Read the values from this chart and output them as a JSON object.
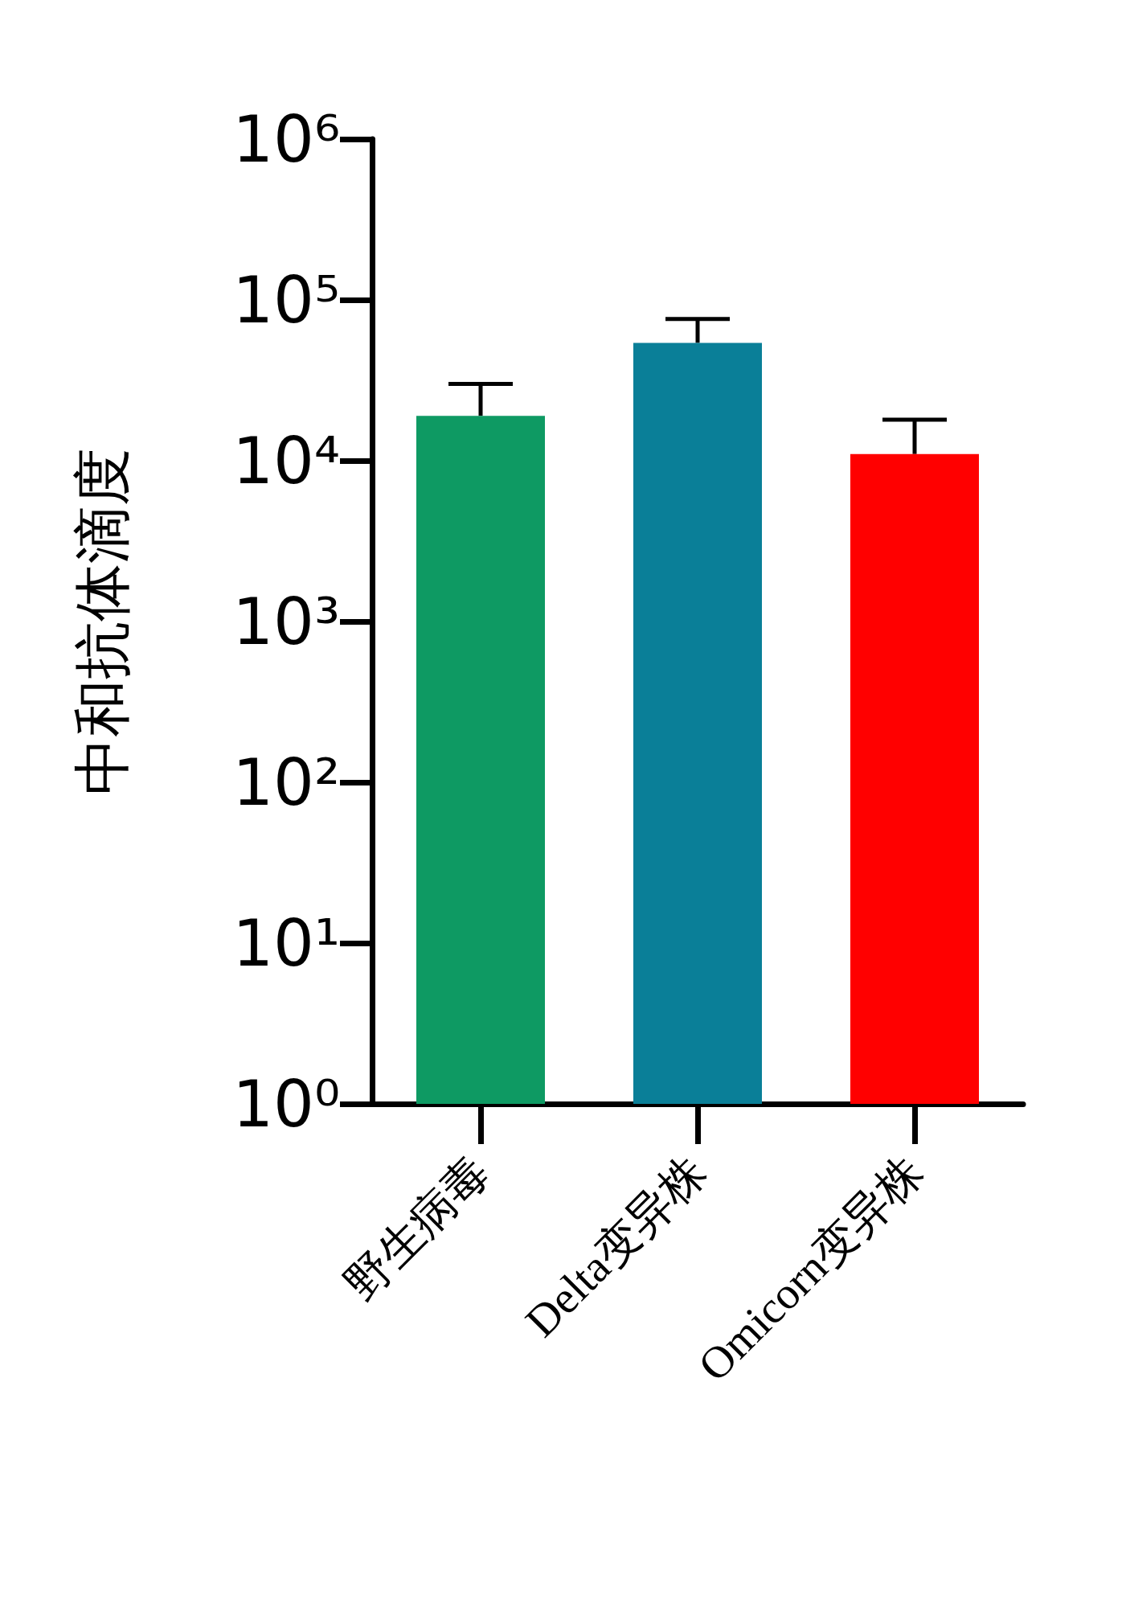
{
  "chart_data": {
    "type": "bar",
    "ylabel": "中和抗体滴度",
    "categories": [
      "野生病毒",
      "Delta变异株",
      "Omicorn变异株"
    ],
    "values": [
      19000,
      54000,
      11000
    ],
    "colors": [
      "#0e9a63",
      "#0a7f98",
      "#ff0000"
    ],
    "errors": [
      [
        19000,
        30000
      ],
      [
        54000,
        76000
      ],
      [
        11000,
        18000
      ]
    ],
    "log": true,
    "ylim": [
      1,
      1000000
    ],
    "yticks": [
      {
        "value": 1,
        "label": "10⁰"
      },
      {
        "value": 10,
        "label": "10¹"
      },
      {
        "value": 100,
        "label": "10²"
      },
      {
        "value": 1000,
        "label": "10³"
      },
      {
        "value": 10000,
        "label": "10⁴"
      },
      {
        "value": 100000,
        "label": "10⁵"
      },
      {
        "value": 1000000,
        "label": "10⁶"
      }
    ],
    "grid": false
  }
}
